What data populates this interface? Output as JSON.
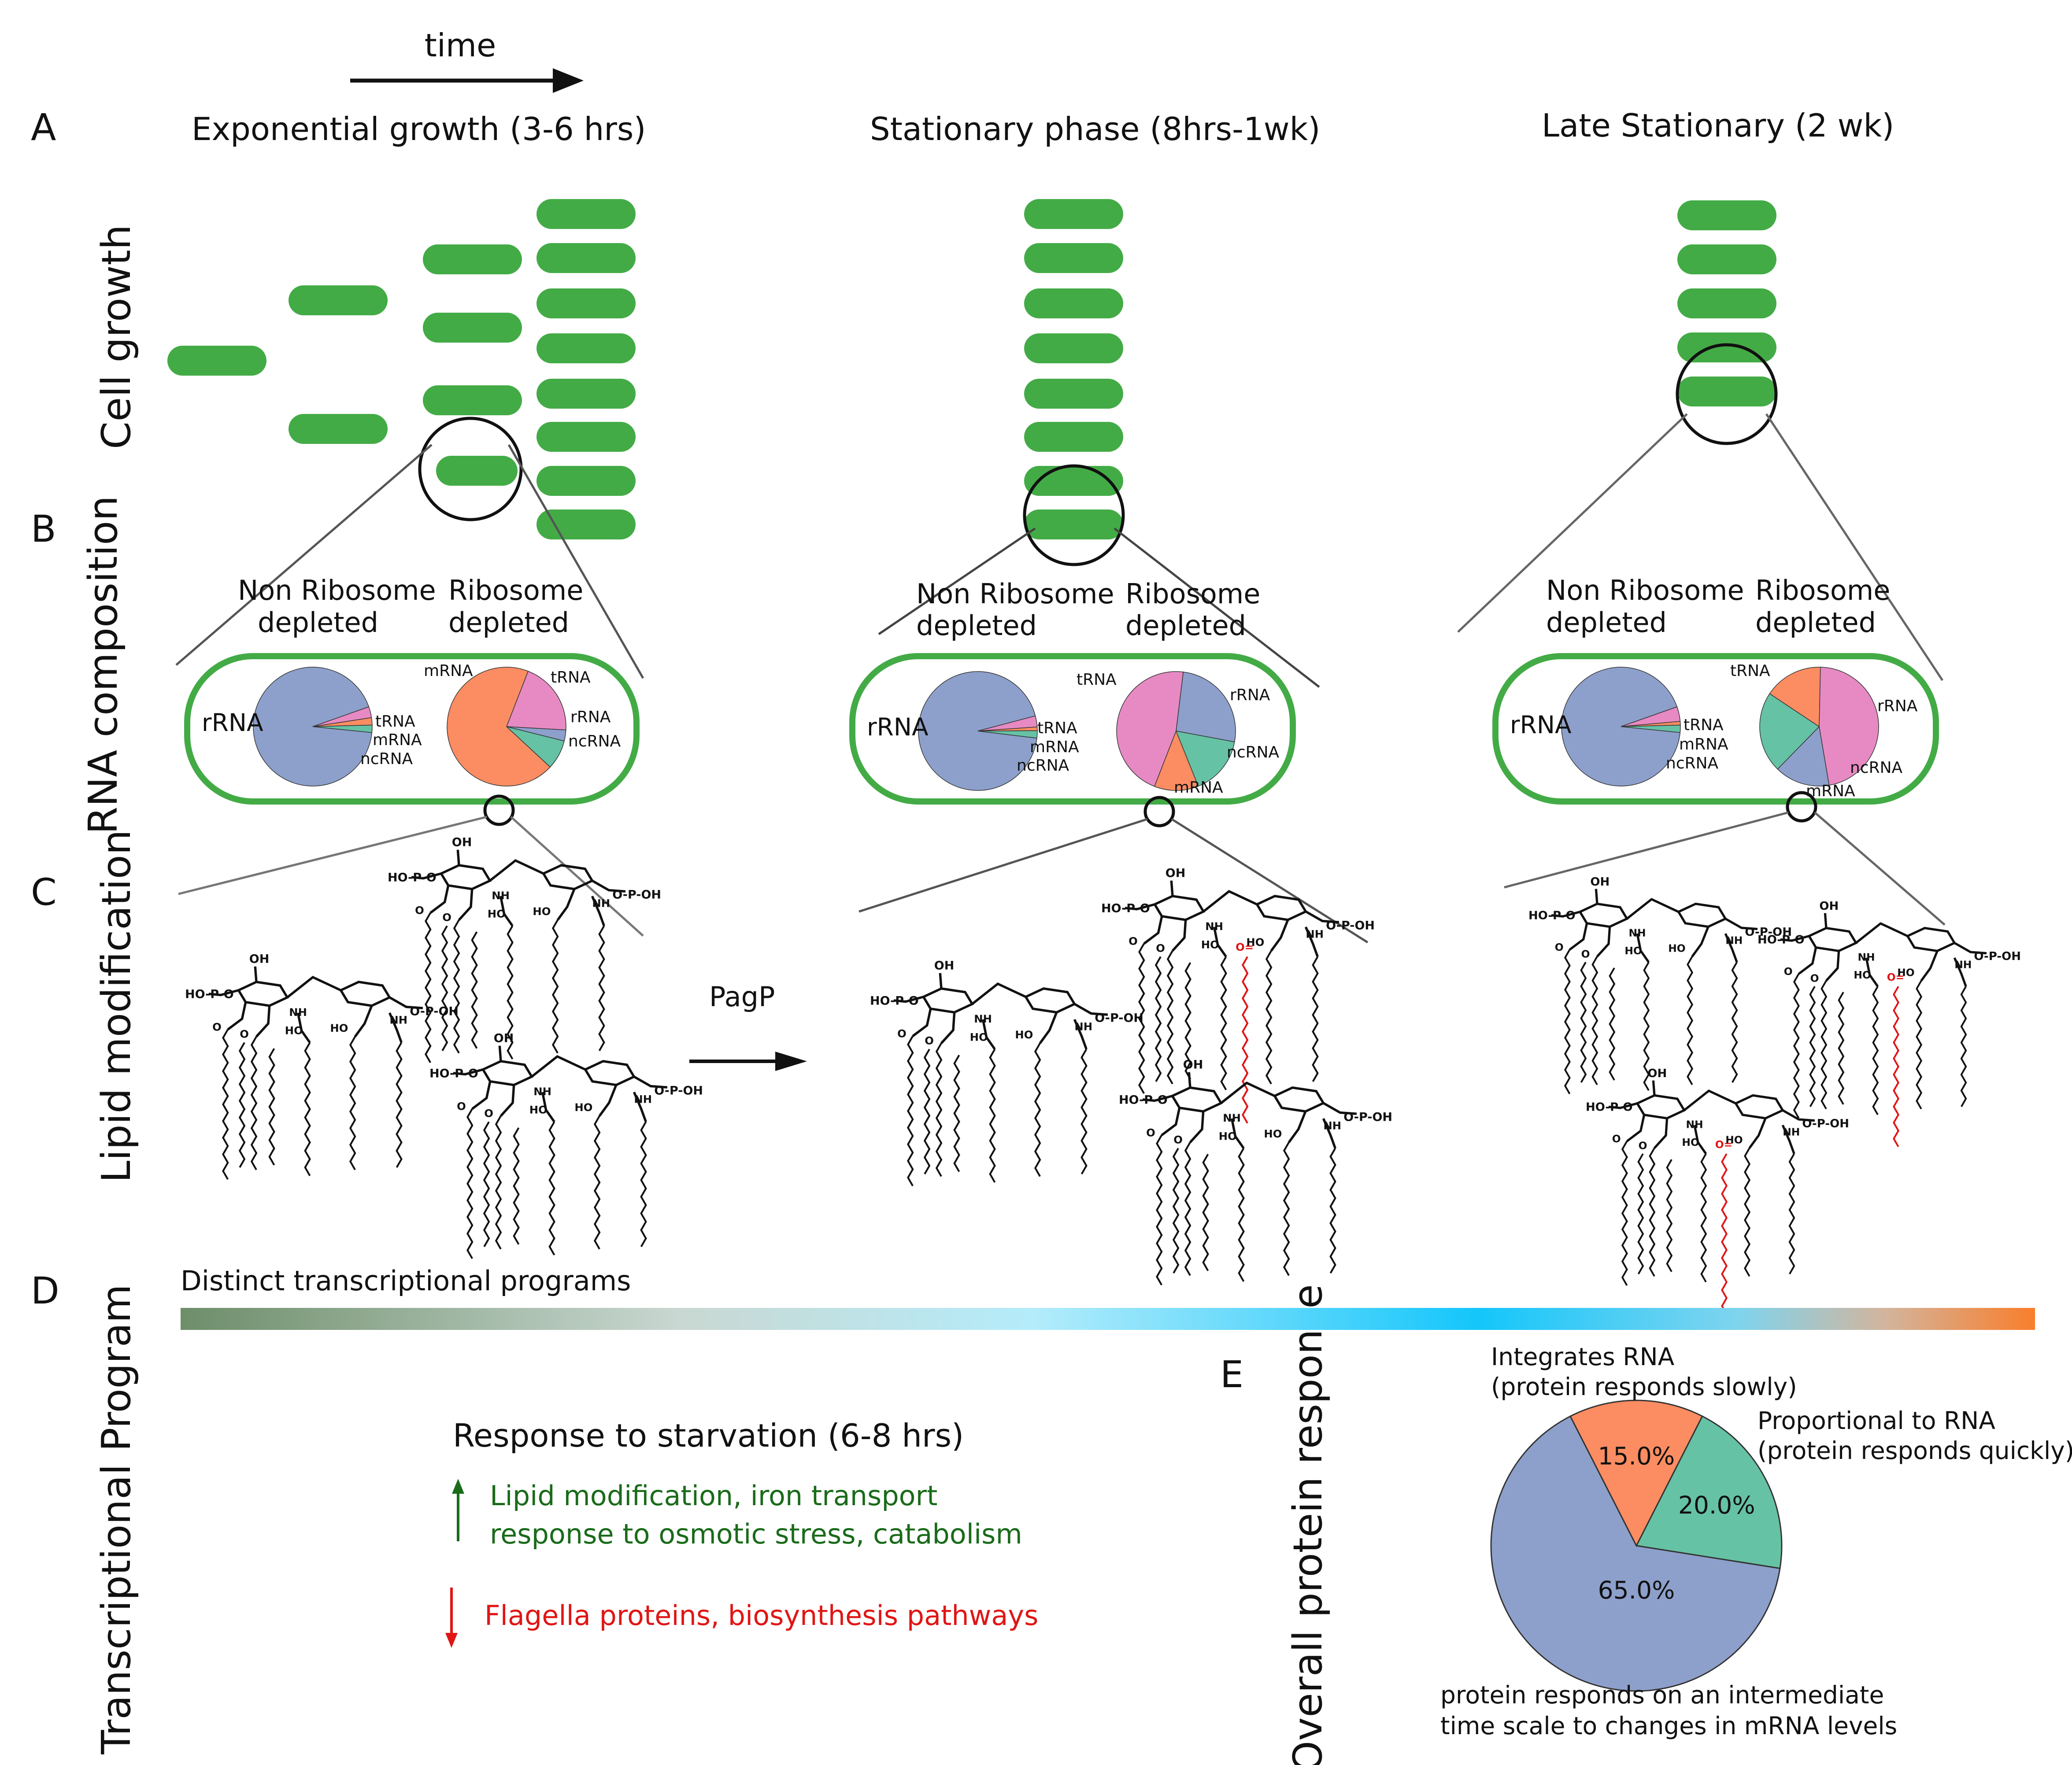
{
  "time_label": "time",
  "panel_letters": {
    "A": "A",
    "B": "B",
    "C": "C",
    "D": "D",
    "E": "E"
  },
  "row_labels": {
    "cell_growth": "Cell growth",
    "rna_composition": "RNA composition",
    "lipid_modification": "Lipid modification",
    "transcriptional_program": "Transcriptional Program",
    "overall_protein_response": "Overall protein response"
  },
  "phases": [
    {
      "title": "Exponential growth (3-6 hrs)"
    },
    {
      "title": "Stationary phase (8hrs-1wk)"
    },
    {
      "title": "Late Stationary  (2 wk)"
    }
  ],
  "rna_headers": {
    "non_ribosome_line1": "Non Ribosome",
    "non_ribosome_line2": "depleted",
    "ribosome_line1": "Ribosome",
    "ribosome_line2": "depleted"
  },
  "rna_labels": {
    "rRNA": "rRNA",
    "tRNA": "tRNA",
    "mRNA": "mRNA",
    "ncRNA": "ncRNA"
  },
  "colors": {
    "cell_green": "#43ab46",
    "rRNA": "#8da0cb",
    "tRNA": "#e78ac3",
    "mRNA": "#fc8d62",
    "ncRNA": "#66c2a5",
    "up_green": "#1a6b1a",
    "down_red": "#e01515",
    "lipid_red": "#e01515"
  },
  "pagp_label": "PagP",
  "transcription": {
    "gradient_label": "Distinct transcriptional programs",
    "gradient_colors": [
      "#6e8e6a",
      "#c9d8d2",
      "#b4ecfb",
      "#1ecbfa",
      "#14c6fb",
      "#cfb49e",
      "#f97e2c"
    ],
    "starvation_title": "Response to starvation (6-8 hrs)",
    "up_line1": "Lipid modification, iron transport",
    "up_line2": "response to osmotic stress, catabolism",
    "down_line1": "Flagella proteins, biosynthesis pathways"
  },
  "protein_response": {
    "label_integrates_1": "Integrates RNA",
    "label_integrates_2": "(protein responds slowly)",
    "label_proportional_1": "Proportional to RNA",
    "label_proportional_2": "(protein responds quickly)",
    "label_intermediate_1": "protein responds on an intermediate",
    "label_intermediate_2": "time scale to changes in mRNA levels"
  },
  "chart_data": [
    {
      "type": "pie",
      "panel": "exponential-non-ribosome-depleted",
      "labels": [
        "rRNA",
        "tRNA",
        "mRNA",
        "ncRNA"
      ],
      "values": [
        93,
        3,
        2,
        2
      ]
    },
    {
      "type": "pie",
      "panel": "exponential-ribosome-depleted",
      "labels": [
        "tRNA",
        "rRNA",
        "ncRNA",
        "mRNA"
      ],
      "values": [
        20,
        3,
        8,
        69
      ]
    },
    {
      "type": "pie",
      "panel": "stationary-non-ribosome-depleted",
      "labels": [
        "rRNA",
        "tRNA",
        "mRNA",
        "ncRNA"
      ],
      "values": [
        94,
        3,
        1,
        2
      ]
    },
    {
      "type": "pie",
      "panel": "stationary-ribosome-depleted",
      "labels": [
        "rRNA",
        "ncRNA",
        "mRNA",
        "tRNA"
      ],
      "values": [
        26,
        16,
        12,
        46
      ]
    },
    {
      "type": "pie",
      "panel": "late-stationary-non-ribosome-depleted",
      "labels": [
        "rRNA",
        "tRNA",
        "mRNA",
        "ncRNA"
      ],
      "values": [
        93,
        4,
        1,
        2
      ]
    },
    {
      "type": "pie",
      "panel": "late-stationary-ribosome-depleted",
      "labels": [
        "tRNA",
        "rRNA",
        "ncRNA",
        "mRNA"
      ],
      "values": [
        47,
        15,
        22,
        16
      ]
    },
    {
      "type": "pie",
      "panel": "overall-protein-response",
      "labels": [
        "Proportional to RNA",
        "protein responds on an intermediate time scale",
        "Integrates RNA"
      ],
      "values": [
        20.0,
        65.0,
        15.0
      ],
      "value_labels": [
        "20.0%",
        "65.0%",
        "15.0%"
      ]
    }
  ]
}
